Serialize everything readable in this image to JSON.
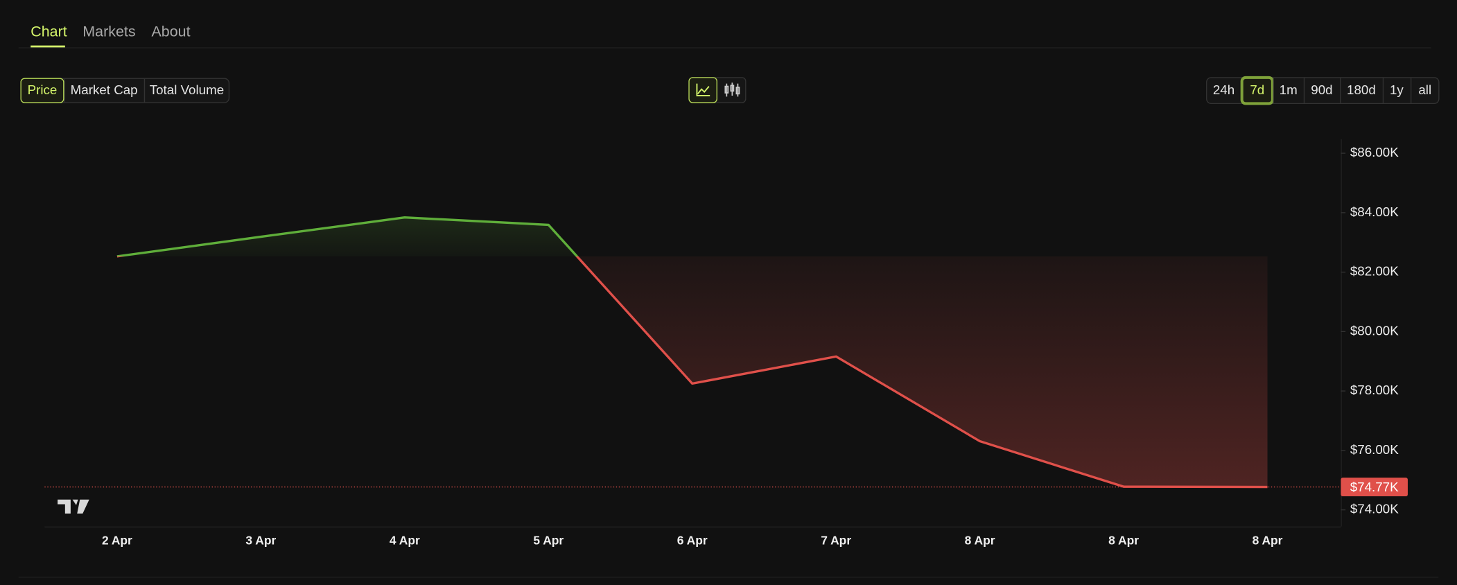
{
  "tabs": [
    "Chart",
    "Markets",
    "About"
  ],
  "data_types": [
    "Price",
    "Market Cap",
    "Total Volume"
  ],
  "ranges": [
    "24h",
    "7d",
    "1m",
    "90d",
    "180d",
    "1y",
    "all"
  ],
  "chart_data": {
    "type": "line",
    "categories": [
      "2 Apr",
      "3 Apr",
      "4 Apr",
      "5 Apr",
      "6 Apr",
      "7 Apr",
      "8 Apr",
      "8 Apr",
      "8 Apr"
    ],
    "values": [
      82.53,
      83.19,
      83.84,
      83.59,
      78.25,
      79.16,
      76.31,
      74.78,
      74.77
    ],
    "value_labels": [
      null,
      null,
      null,
      null,
      null,
      null,
      null,
      null,
      "$74.77K"
    ],
    "up_color": "#5fae3a",
    "down_color": "#e0504a",
    "ylim": [
      73.44,
      86.47
    ],
    "yticks": [
      {
        "value": 86,
        "label": "$86.00K"
      },
      {
        "value": 84,
        "label": "$84.00K"
      },
      {
        "value": 82,
        "label": "$82.00K"
      },
      {
        "value": 80,
        "label": "$80.00K"
      },
      {
        "value": 78,
        "label": "$78.00K"
      },
      {
        "value": 76,
        "label": "$76.00K"
      },
      {
        "value": 74,
        "label": "$74.00K"
      }
    ]
  }
}
